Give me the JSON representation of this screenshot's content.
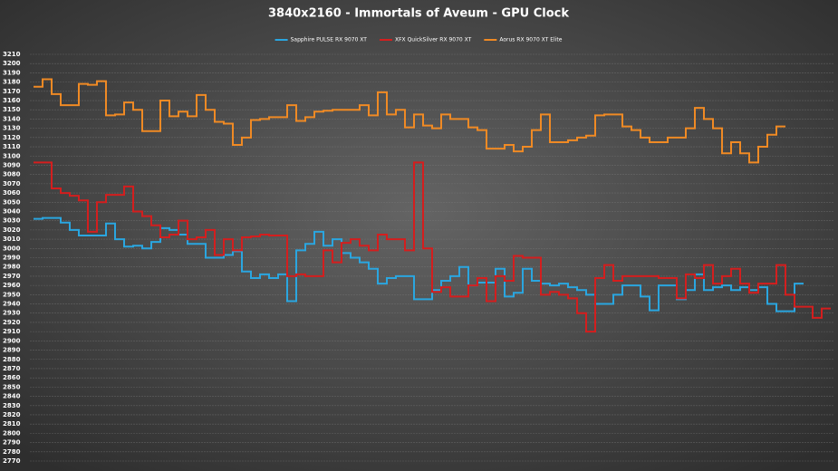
{
  "chart_data": {
    "type": "line",
    "step": true,
    "title": "3840x2160 - Immortals of Aveum - GPU Clock",
    "categories": [
      null,
      null,
      null,
      null,
      null,
      null,
      null,
      null,
      null,
      null,
      null,
      null,
      null,
      null,
      null,
      null,
      null,
      null,
      null,
      null,
      null,
      null,
      null,
      null,
      null,
      null,
      null,
      null,
      null,
      null,
      null,
      null,
      null,
      null,
      null,
      null,
      null,
      null,
      null,
      null,
      null,
      null,
      null,
      null,
      null,
      null,
      null,
      null,
      null,
      null,
      null,
      null,
      null,
      null,
      null,
      null,
      null,
      null,
      null,
      null,
      null,
      null,
      null,
      null,
      null,
      null,
      null,
      null,
      null,
      null,
      null,
      null,
      null,
      null,
      null,
      null,
      null,
      null,
      null,
      null,
      null,
      null,
      null,
      null,
      null,
      null,
      null,
      null
    ],
    "series": [
      {
        "name": "Sapphire PULSE RX 9070 XT",
        "color": "#2aa6e0",
        "values": [
          3032,
          3033,
          3033,
          3028,
          3020,
          3014,
          3014,
          3014,
          3027,
          3010,
          3002,
          3003,
          3000,
          3007,
          3022,
          3020,
          3015,
          3005,
          3005,
          2990,
          2990,
          2993,
          2997,
          2975,
          2968,
          2972,
          2968,
          2972,
          2943,
          2998,
          3005,
          3018,
          3003,
          3010,
          2995,
          2990,
          2985,
          2978,
          2962,
          2968,
          2970,
          2970,
          2945,
          2945,
          2955,
          2965,
          2970,
          2980,
          2960,
          2963,
          2963,
          2978,
          2948,
          2952,
          2978,
          2965,
          2962,
          2960,
          2962,
          2958,
          2955,
          2950,
          2940,
          2940,
          2950,
          2960,
          2960,
          2948,
          2933,
          2960,
          2960,
          2945,
          2955,
          2972,
          2955,
          2958,
          2960,
          2955,
          2958,
          2955,
          2958,
          2940,
          2932,
          2932,
          2962,
          null,
          null,
          null
        ]
      },
      {
        "name": "XFX QuickSilver RX 9070 XT",
        "color": "#d41e1e",
        "values": [
          3093,
          3093,
          3065,
          3060,
          3057,
          3052,
          3018,
          3050,
          3058,
          3058,
          3067,
          3040,
          3035,
          3025,
          3012,
          3015,
          3030,
          3010,
          3012,
          3020,
          2993,
          3010,
          2998,
          3012,
          3013,
          3015,
          3014,
          3014,
          2970,
          2972,
          2970,
          2970,
          2998,
          2985,
          3006,
          3010,
          3003,
          2998,
          3015,
          3010,
          3010,
          2998,
          3093,
          3000,
          2953,
          2958,
          2948,
          2948,
          2960,
          2968,
          2943,
          2970,
          2965,
          2992,
          2990,
          2990,
          2950,
          2953,
          2950,
          2946,
          2930,
          2910,
          2968,
          2982,
          2965,
          2970,
          2970,
          2970,
          2970,
          2968,
          2968,
          2946,
          2972,
          2968,
          2982,
          2962,
          2970,
          2978,
          2962,
          2952,
          2962,
          2962,
          2982,
          2950,
          2937,
          2937,
          2925,
          2935
        ]
      },
      {
        "name": "Aorus RX 9070 XT Elite",
        "color": "#f08a24",
        "values": [
          3175,
          3183,
          3167,
          3155,
          3155,
          3178,
          3177,
          3181,
          3144,
          3145,
          3158,
          3150,
          3127,
          3127,
          3160,
          3143,
          3148,
          3143,
          3166,
          3150,
          3137,
          3135,
          3112,
          3120,
          3139,
          3140,
          3142,
          3142,
          3155,
          3138,
          3142,
          3148,
          3149,
          3150,
          3150,
          3150,
          3155,
          3144,
          3169,
          3145,
          3150,
          3131,
          3145,
          3133,
          3130,
          3145,
          3140,
          3140,
          3131,
          3128,
          3108,
          3108,
          3112,
          3105,
          3110,
          3128,
          3145,
          3115,
          3115,
          3117,
          3120,
          3122,
          3144,
          3145,
          3145,
          3132,
          3128,
          3120,
          3115,
          3115,
          3120,
          3120,
          3130,
          3152,
          3140,
          3130,
          3103,
          3115,
          3103,
          3093,
          3110,
          3123,
          3132,
          null,
          null,
          null,
          null,
          null
        ]
      }
    ],
    "ylim": [
      2770,
      3210
    ],
    "yticks": [
      2770,
      2780,
      2790,
      2800,
      2810,
      2820,
      2830,
      2840,
      2850,
      2860,
      2870,
      2880,
      2890,
      2900,
      2910,
      2920,
      2930,
      2940,
      2950,
      2960,
      2970,
      2980,
      2990,
      3000,
      3010,
      3020,
      3030,
      3040,
      3050,
      3060,
      3070,
      3080,
      3090,
      3100,
      3110,
      3120,
      3130,
      3140,
      3150,
      3160,
      3170,
      3180,
      3190,
      3200,
      3210
    ],
    "grid": true,
    "legend": "top"
  }
}
